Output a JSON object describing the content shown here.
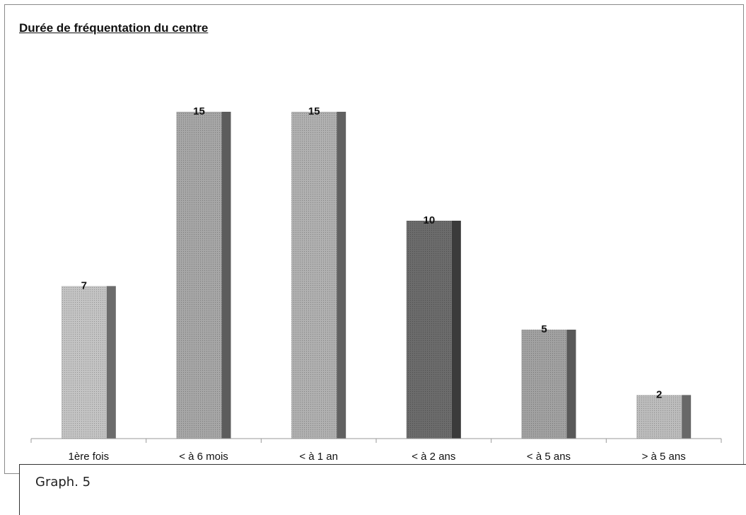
{
  "chart_data": {
    "type": "bar",
    "title": "Durée de fréquentation du centre",
    "categories": [
      "1ère fois",
      "< à 6 mois",
      "< à 1 an",
      "< à 2 ans",
      "< à 5 ans",
      "> à 5 ans"
    ],
    "values": [
      7,
      15,
      15,
      10,
      5,
      2
    ],
    "ylim": [
      0,
      15
    ],
    "grid": false,
    "data_labels": true,
    "colors": [
      "#c4c4c4",
      "#a7a7a7",
      "#b1b1b1",
      "#6c6c6c",
      "#a2a2a2",
      "#bdbdbd"
    ]
  },
  "caption": "Graph. 5"
}
